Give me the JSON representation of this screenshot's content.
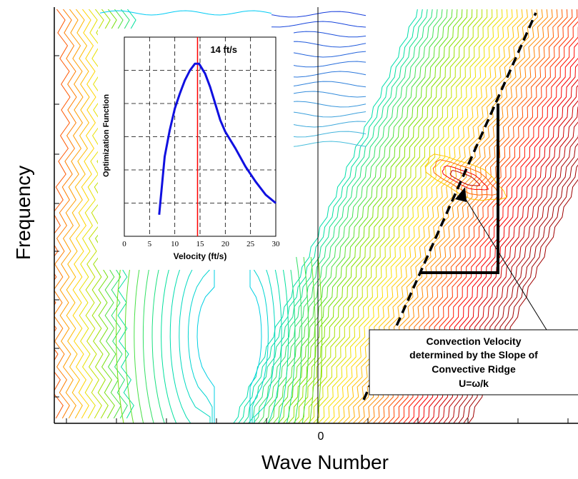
{
  "main_plot": {
    "xlabel": "Wave Number",
    "ylabel": "Frequency",
    "x_ticks": [
      {
        "value": 0,
        "label": "0"
      }
    ],
    "contour_color_scale": [
      "#00c8ff",
      "#00e0a0",
      "#80e000",
      "#ffe000",
      "#ff8000",
      "#ff0000",
      "#a00000"
    ]
  },
  "annotation": {
    "lines": [
      "Convection Velocity",
      "determined by the Slope of",
      "Convective Ridge",
      "U=ω/k"
    ]
  },
  "chart_data": {
    "type": "line",
    "x": [
      6.9,
      8,
      9,
      10,
      11,
      12,
      13,
      14,
      14.8,
      16,
      17,
      18,
      19,
      20,
      22,
      24,
      26,
      28,
      30
    ],
    "series": [
      {
        "values": [
          0.13,
          0.48,
          0.64,
          0.77,
          0.86,
          0.94,
          1.0,
          1.04,
          1.04,
          0.98,
          0.9,
          0.8,
          0.7,
          0.63,
          0.53,
          0.42,
          0.33,
          0.25,
          0.2
        ],
        "color": "#1010e0"
      }
    ],
    "xlabel": "Velocity (ft/s)",
    "ylabel": "Optimization Function",
    "xlim": [
      0,
      30
    ],
    "ylim": [
      0,
      1.2
    ],
    "x_ticks": [
      0,
      5,
      10,
      15,
      20,
      25,
      30
    ],
    "grid": true,
    "vline": {
      "x": 14.5,
      "label": "14 ft/s",
      "color": "#ff0000"
    }
  }
}
